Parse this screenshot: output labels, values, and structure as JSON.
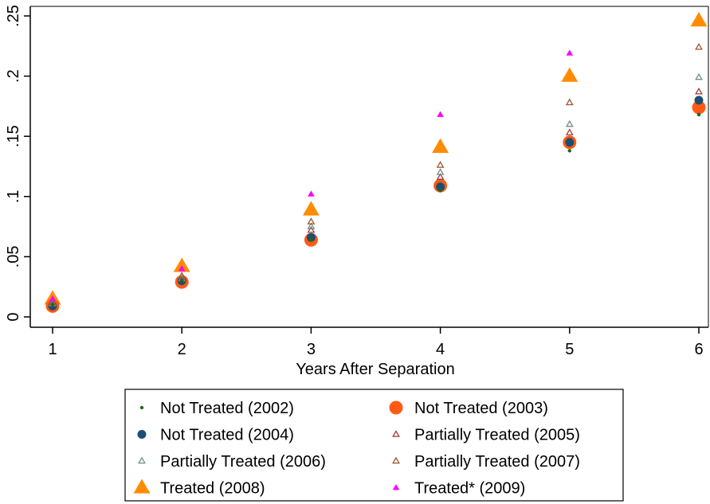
{
  "chart_data": {
    "type": "scatter",
    "xlabel": "Years After Separation",
    "ylabel": "",
    "x": [
      1,
      2,
      3,
      4,
      5,
      6
    ],
    "xlim": [
      1,
      6
    ],
    "ylim": [
      0,
      0.25
    ],
    "x_ticks": [
      1,
      2,
      3,
      4,
      5,
      6
    ],
    "x_tick_labels": [
      "1",
      "2",
      "3",
      "4",
      "5",
      "6"
    ],
    "y_ticks": [
      0,
      0.05,
      0.1,
      0.15,
      0.2,
      0.25
    ],
    "y_tick_labels": [
      "0",
      ".05",
      ".1",
      ".15",
      ".2",
      ".25"
    ],
    "grid": false,
    "legend_position": "bottom",
    "series": [
      {
        "name": "Not Treated (2002)",
        "marker": "dot-small",
        "color": "#1a6b1a",
        "values": [
          0.01,
          0.03,
          0.064,
          0.105,
          0.138,
          0.168
        ]
      },
      {
        "name": "Not Treated (2003)",
        "marker": "circle-large",
        "color": "#ff5a14",
        "values": [
          0.009,
          0.029,
          0.064,
          0.109,
          0.145,
          0.174
        ]
      },
      {
        "name": "Not Treated (2004)",
        "marker": "circle-medium",
        "color": "#1b4f72",
        "values": [
          0.009,
          0.03,
          0.066,
          0.108,
          0.145,
          0.18
        ]
      },
      {
        "name": "Partially Treated (2005)",
        "marker": "triangle-hollow",
        "color": "#a33a3a",
        "values": [
          0.011,
          0.031,
          0.072,
          0.116,
          0.153,
          0.187
        ]
      },
      {
        "name": "Partially Treated (2006)",
        "marker": "triangle-hollow",
        "color": "#6f8f84",
        "values": [
          0.011,
          0.032,
          0.075,
          0.12,
          0.16,
          0.199
        ]
      },
      {
        "name": "Partially Treated (2007)",
        "marker": "triangle-hollow",
        "color": "#a0522d",
        "values": [
          0.012,
          0.034,
          0.079,
          0.126,
          0.178,
          0.224
        ]
      },
      {
        "name": "Treated (2008)",
        "marker": "triangle-large",
        "color": "#ff8c00",
        "values": [
          0.015,
          0.042,
          0.089,
          0.141,
          0.2,
          0.246
        ]
      },
      {
        "name": "Treated* (2009)",
        "marker": "triangle-small",
        "color": "#ff00ff",
        "values": [
          0.015,
          0.04,
          0.102,
          0.168,
          0.219,
          null
        ]
      }
    ]
  }
}
